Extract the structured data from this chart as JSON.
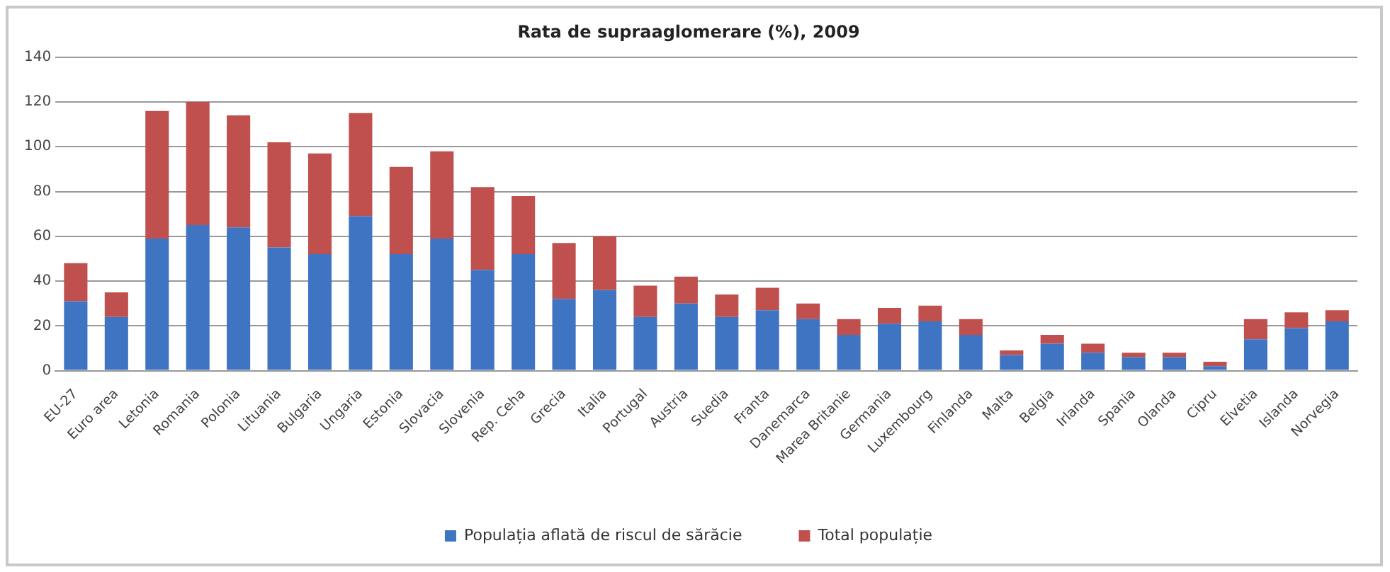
{
  "chart_data": {
    "type": "bar",
    "title": "Rata de supraaglomerare (%), 2009",
    "stacked": true,
    "categories": [
      "EU-27",
      "Euro area",
      "Letonia",
      "Romania",
      "Polonia",
      "Lituania",
      "Bulgaria",
      "Ungaria",
      "Estonia",
      "Slovacia",
      "Slovenia",
      "Rep. Ceha",
      "Grecia",
      "Italia",
      "Portugal",
      "Austria",
      "Suedia",
      "Franta",
      "Danemarca",
      "Marea Britanie",
      "Germania",
      "Luxembourg",
      "Finlanda",
      "Malta",
      "Belgia",
      "Irlanda",
      "Spania",
      "Olanda",
      "Cipru",
      "Elvetia",
      "Islanda",
      "Norvegia"
    ],
    "series": [
      {
        "name": "Populația aflată de riscul de sărăcie",
        "color": "#3f74c2",
        "values": [
          31,
          24,
          59,
          65,
          64,
          55,
          52,
          69,
          52,
          59,
          45,
          52,
          32,
          36,
          24,
          30,
          24,
          27,
          23,
          16,
          21,
          22,
          16,
          7,
          12,
          8,
          6,
          6,
          2,
          14,
          19,
          22
        ]
      },
      {
        "name": "Total populație",
        "color": "#c0504d",
        "values": [
          17,
          11,
          57,
          55,
          50,
          47,
          45,
          46,
          39,
          39,
          37,
          26,
          25,
          24,
          14,
          12,
          10,
          10,
          7,
          7,
          7,
          7,
          7,
          2,
          4,
          4,
          2,
          2,
          2,
          9,
          7,
          5
        ]
      }
    ],
    "ylim": [
      0,
      140
    ],
    "yticks": [
      0,
      20,
      40,
      60,
      80,
      100,
      120,
      140
    ],
    "grid": "y",
    "legend": "bottom"
  }
}
